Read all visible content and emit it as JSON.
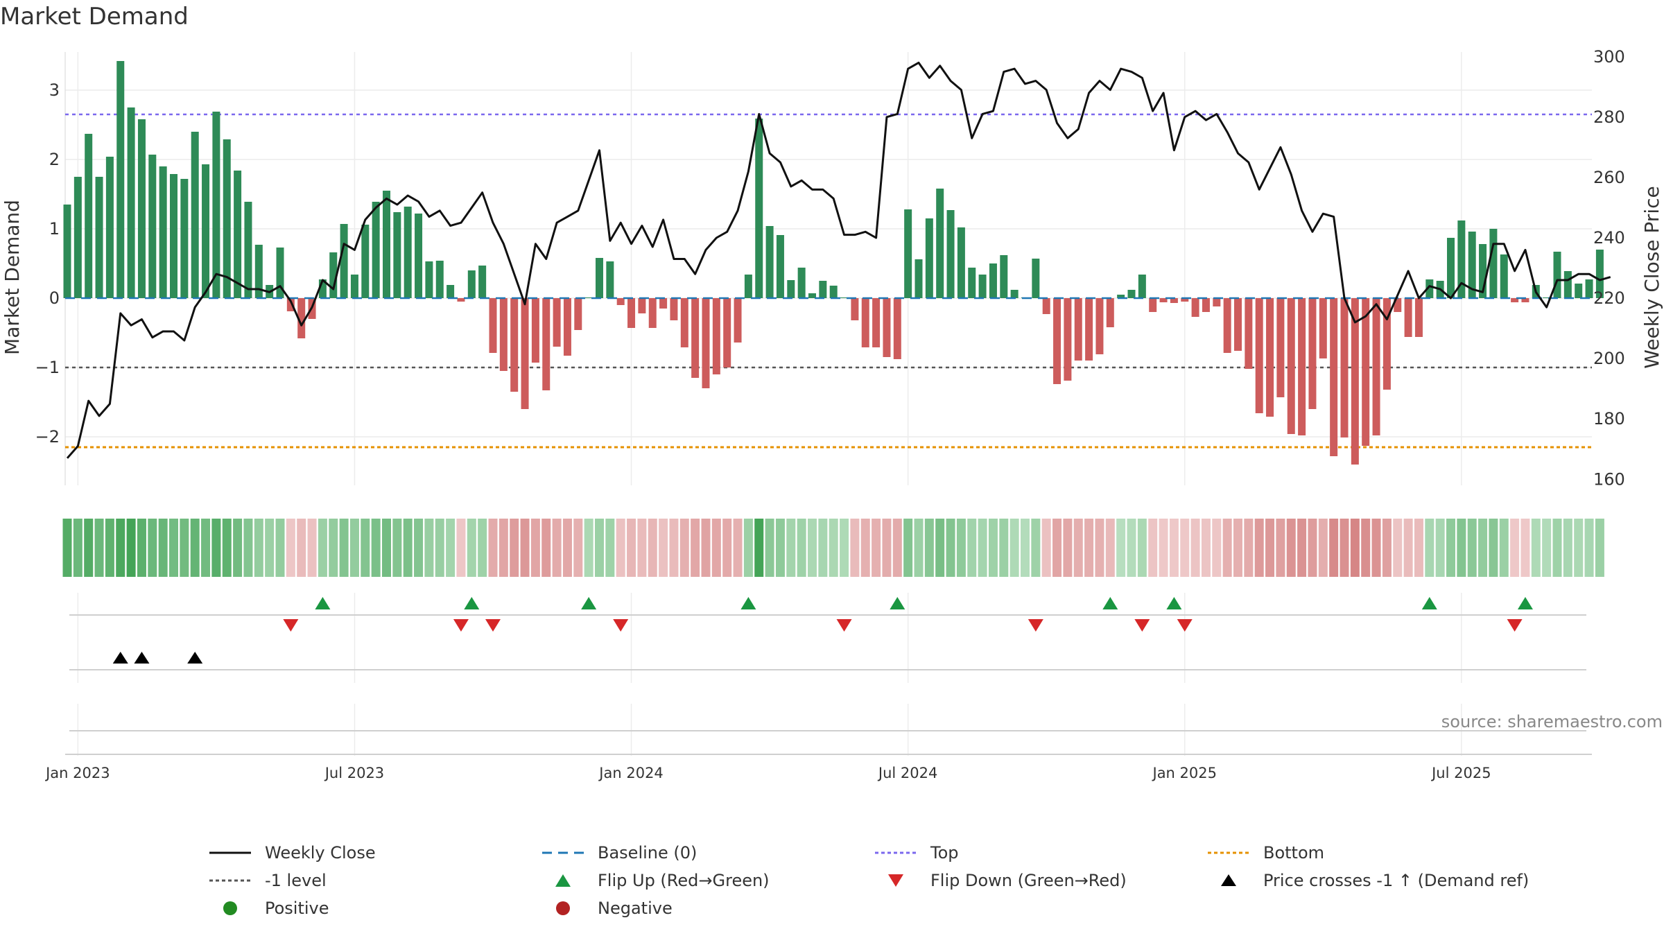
{
  "title": "Market Demand",
  "source": "source: sharemaestro.com",
  "colors": {
    "positive": "#2e8b57",
    "negative": "#cd5c5c",
    "price": "#111111",
    "baseline": "#1f77b4",
    "top": "#7b68ee",
    "bottom": "#e69100",
    "level": "#555555",
    "flip_up": "#1a9641",
    "flip_down": "#d62728",
    "cross": "#000000"
  },
  "chart_data": {
    "type": "bar",
    "x_ticks": [
      "Jan 2023",
      "Jul 2023",
      "Jan 2024",
      "Jul 2024",
      "Jan 2025",
      "Jul 2025"
    ],
    "x_tick_index": [
      1,
      27,
      53,
      79,
      105,
      131
    ],
    "left_axis": {
      "label": "Market Demand",
      "range": [
        -2.7,
        3.7
      ],
      "ticks": [
        "3",
        "2",
        "1",
        "0",
        "−1",
        "−2"
      ],
      "tick_values": [
        3,
        2,
        1,
        0,
        -1,
        -2
      ]
    },
    "right_axis": {
      "label": "Weekly Close Price",
      "range": [
        158,
        305
      ],
      "ticks": [
        "300",
        "280",
        "260",
        "240",
        "220",
        "200",
        "180",
        "160"
      ],
      "tick_values": [
        300,
        280,
        260,
        240,
        220,
        200,
        180,
        160
      ]
    },
    "reference_lines": {
      "top": 2.65,
      "bottom": -2.15,
      "level": -1,
      "baseline": 0
    },
    "demand": [
      1.35,
      1.75,
      2.37,
      1.75,
      2.04,
      3.42,
      2.75,
      2.58,
      2.07,
      1.9,
      1.79,
      1.72,
      2.4,
      1.93,
      2.69,
      2.29,
      1.84,
      1.39,
      0.77,
      0.19,
      0.73,
      -0.19,
      -0.58,
      -0.3,
      0.27,
      0.66,
      1.07,
      0.34,
      1.06,
      1.39,
      1.55,
      1.24,
      1.32,
      1.22,
      0.53,
      0.54,
      0.19,
      -0.05,
      0.4,
      0.47,
      -0.79,
      -1.05,
      -1.35,
      -1.6,
      -0.93,
      -1.33,
      -0.7,
      -0.83,
      -0.46,
      0.01,
      0.58,
      0.53,
      -0.1,
      -0.43,
      -0.22,
      -0.43,
      -0.15,
      -0.32,
      -0.71,
      -1.15,
      -1.3,
      -1.1,
      -1.0,
      -0.64,
      0.34,
      2.59,
      1.04,
      0.91,
      0.26,
      0.44,
      0.07,
      0.25,
      0.18,
      0.01,
      -0.32,
      -0.71,
      -0.71,
      -0.85,
      -0.88,
      1.28,
      0.56,
      1.15,
      1.58,
      1.27,
      1.02,
      0.44,
      0.34,
      0.5,
      0.62,
      0.12,
      0.01,
      0.57,
      -0.23,
      -1.24,
      -1.19,
      -0.9,
      -0.9,
      -0.81,
      -0.42,
      0.05,
      0.12,
      0.34,
      -0.2,
      -0.06,
      -0.07,
      -0.05,
      -0.27,
      -0.2,
      -0.12,
      -0.79,
      -0.76,
      -1.02,
      -1.66,
      -1.71,
      -1.43,
      -1.96,
      -1.98,
      -1.6,
      -0.87,
      -2.28,
      -2.01,
      -2.4,
      -2.13,
      -1.98,
      -1.32,
      -0.2,
      -0.56,
      -0.56,
      0.27,
      0.25,
      0.87,
      1.12,
      0.96,
      0.78,
      1.0,
      0.63,
      -0.06,
      -0.06,
      0.19,
      0.01,
      0.67,
      0.39,
      0.21,
      0.27,
      0.7
    ],
    "price": [
      167,
      171,
      186,
      181,
      185,
      215,
      211,
      213,
      207,
      209,
      209,
      206,
      217,
      222,
      228,
      227,
      225,
      223,
      223,
      222,
      224,
      219,
      211,
      217,
      226,
      223,
      238,
      236,
      246,
      250,
      253,
      251,
      254,
      252,
      247,
      249,
      244,
      245,
      250,
      255,
      245,
      238,
      228,
      218,
      238,
      233,
      245,
      247,
      249,
      259,
      269,
      239,
      245,
      238,
      244,
      237,
      246,
      233,
      233,
      228,
      236,
      240,
      242,
      249,
      262,
      281,
      268,
      265,
      257,
      259,
      256,
      256,
      253,
      241,
      241,
      242,
      240,
      280,
      281,
      296,
      298,
      293,
      297,
      292,
      289,
      273,
      281,
      282,
      295,
      296,
      291,
      292,
      289,
      278,
      273,
      276,
      288,
      292,
      289,
      296,
      295,
      293,
      282,
      288,
      269,
      280,
      282,
      279,
      281,
      275,
      268,
      265,
      256,
      263,
      270,
      261,
      249,
      242,
      248,
      247,
      220,
      212,
      214,
      218,
      213,
      221,
      229,
      220,
      224,
      223,
      220,
      225,
      223,
      222,
      238,
      238,
      229,
      236,
      222,
      217,
      226,
      226,
      228,
      228,
      226,
      227
    ],
    "band_intensity": [
      0.85,
      0.7,
      0.85,
      0.7,
      0.78,
      0.9,
      0.95,
      0.8,
      0.7,
      0.72,
      0.65,
      0.66,
      0.75,
      0.66,
      0.82,
      0.78,
      0.66,
      0.55,
      0.45,
      0.4,
      0.45,
      0.2,
      0.3,
      0.25,
      0.4,
      0.45,
      0.55,
      0.45,
      0.55,
      0.6,
      0.65,
      0.55,
      0.6,
      0.55,
      0.42,
      0.42,
      0.35,
      0.2,
      0.35,
      0.38,
      0.45,
      0.5,
      0.58,
      0.62,
      0.5,
      0.58,
      0.45,
      0.48,
      0.4,
      0.3,
      0.4,
      0.38,
      0.25,
      0.35,
      0.3,
      0.35,
      0.25,
      0.3,
      0.4,
      0.48,
      0.52,
      0.48,
      0.46,
      0.4,
      0.4,
      0.95,
      0.5,
      0.48,
      0.35,
      0.38,
      0.3,
      0.32,
      0.3,
      0.28,
      0.3,
      0.4,
      0.4,
      0.44,
      0.45,
      0.55,
      0.4,
      0.52,
      0.62,
      0.55,
      0.48,
      0.36,
      0.34,
      0.38,
      0.4,
      0.28,
      0.25,
      0.38,
      0.25,
      0.5,
      0.48,
      0.42,
      0.42,
      0.4,
      0.32,
      0.22,
      0.25,
      0.3,
      0.22,
      0.18,
      0.18,
      0.18,
      0.22,
      0.22,
      0.2,
      0.4,
      0.4,
      0.45,
      0.6,
      0.62,
      0.55,
      0.66,
      0.67,
      0.58,
      0.42,
      0.75,
      0.68,
      0.78,
      0.7,
      0.66,
      0.55,
      0.22,
      0.3,
      0.3,
      0.32,
      0.32,
      0.48,
      0.55,
      0.5,
      0.45,
      0.52,
      0.4,
      0.18,
      0.18,
      0.28,
      0.26,
      0.38,
      0.32,
      0.3,
      0.32,
      0.4
    ],
    "flip_up_index": [
      24,
      38,
      49,
      64,
      78,
      98,
      104,
      128,
      137
    ],
    "flip_down_index": [
      21,
      37,
      40,
      52,
      73,
      91,
      101,
      105,
      136
    ],
    "price_cross_index": [
      5,
      7,
      12
    ],
    "legend": [
      {
        "key": "close",
        "label": "Weekly Close"
      },
      {
        "key": "baseline",
        "label": "Baseline (0)"
      },
      {
        "key": "top",
        "label": "Top"
      },
      {
        "key": "bottom",
        "label": "Bottom"
      },
      {
        "key": "level",
        "label": "-1 level"
      },
      {
        "key": "flip_up",
        "label": "Flip Up (Red→Green)"
      },
      {
        "key": "flip_down",
        "label": "Flip Down (Green→Red)"
      },
      {
        "key": "cross",
        "label": "Price crosses -1 ↑ (Demand ref)"
      },
      {
        "key": "positive",
        "label": "Positive"
      },
      {
        "key": "negative",
        "label": "Negative"
      }
    ]
  }
}
